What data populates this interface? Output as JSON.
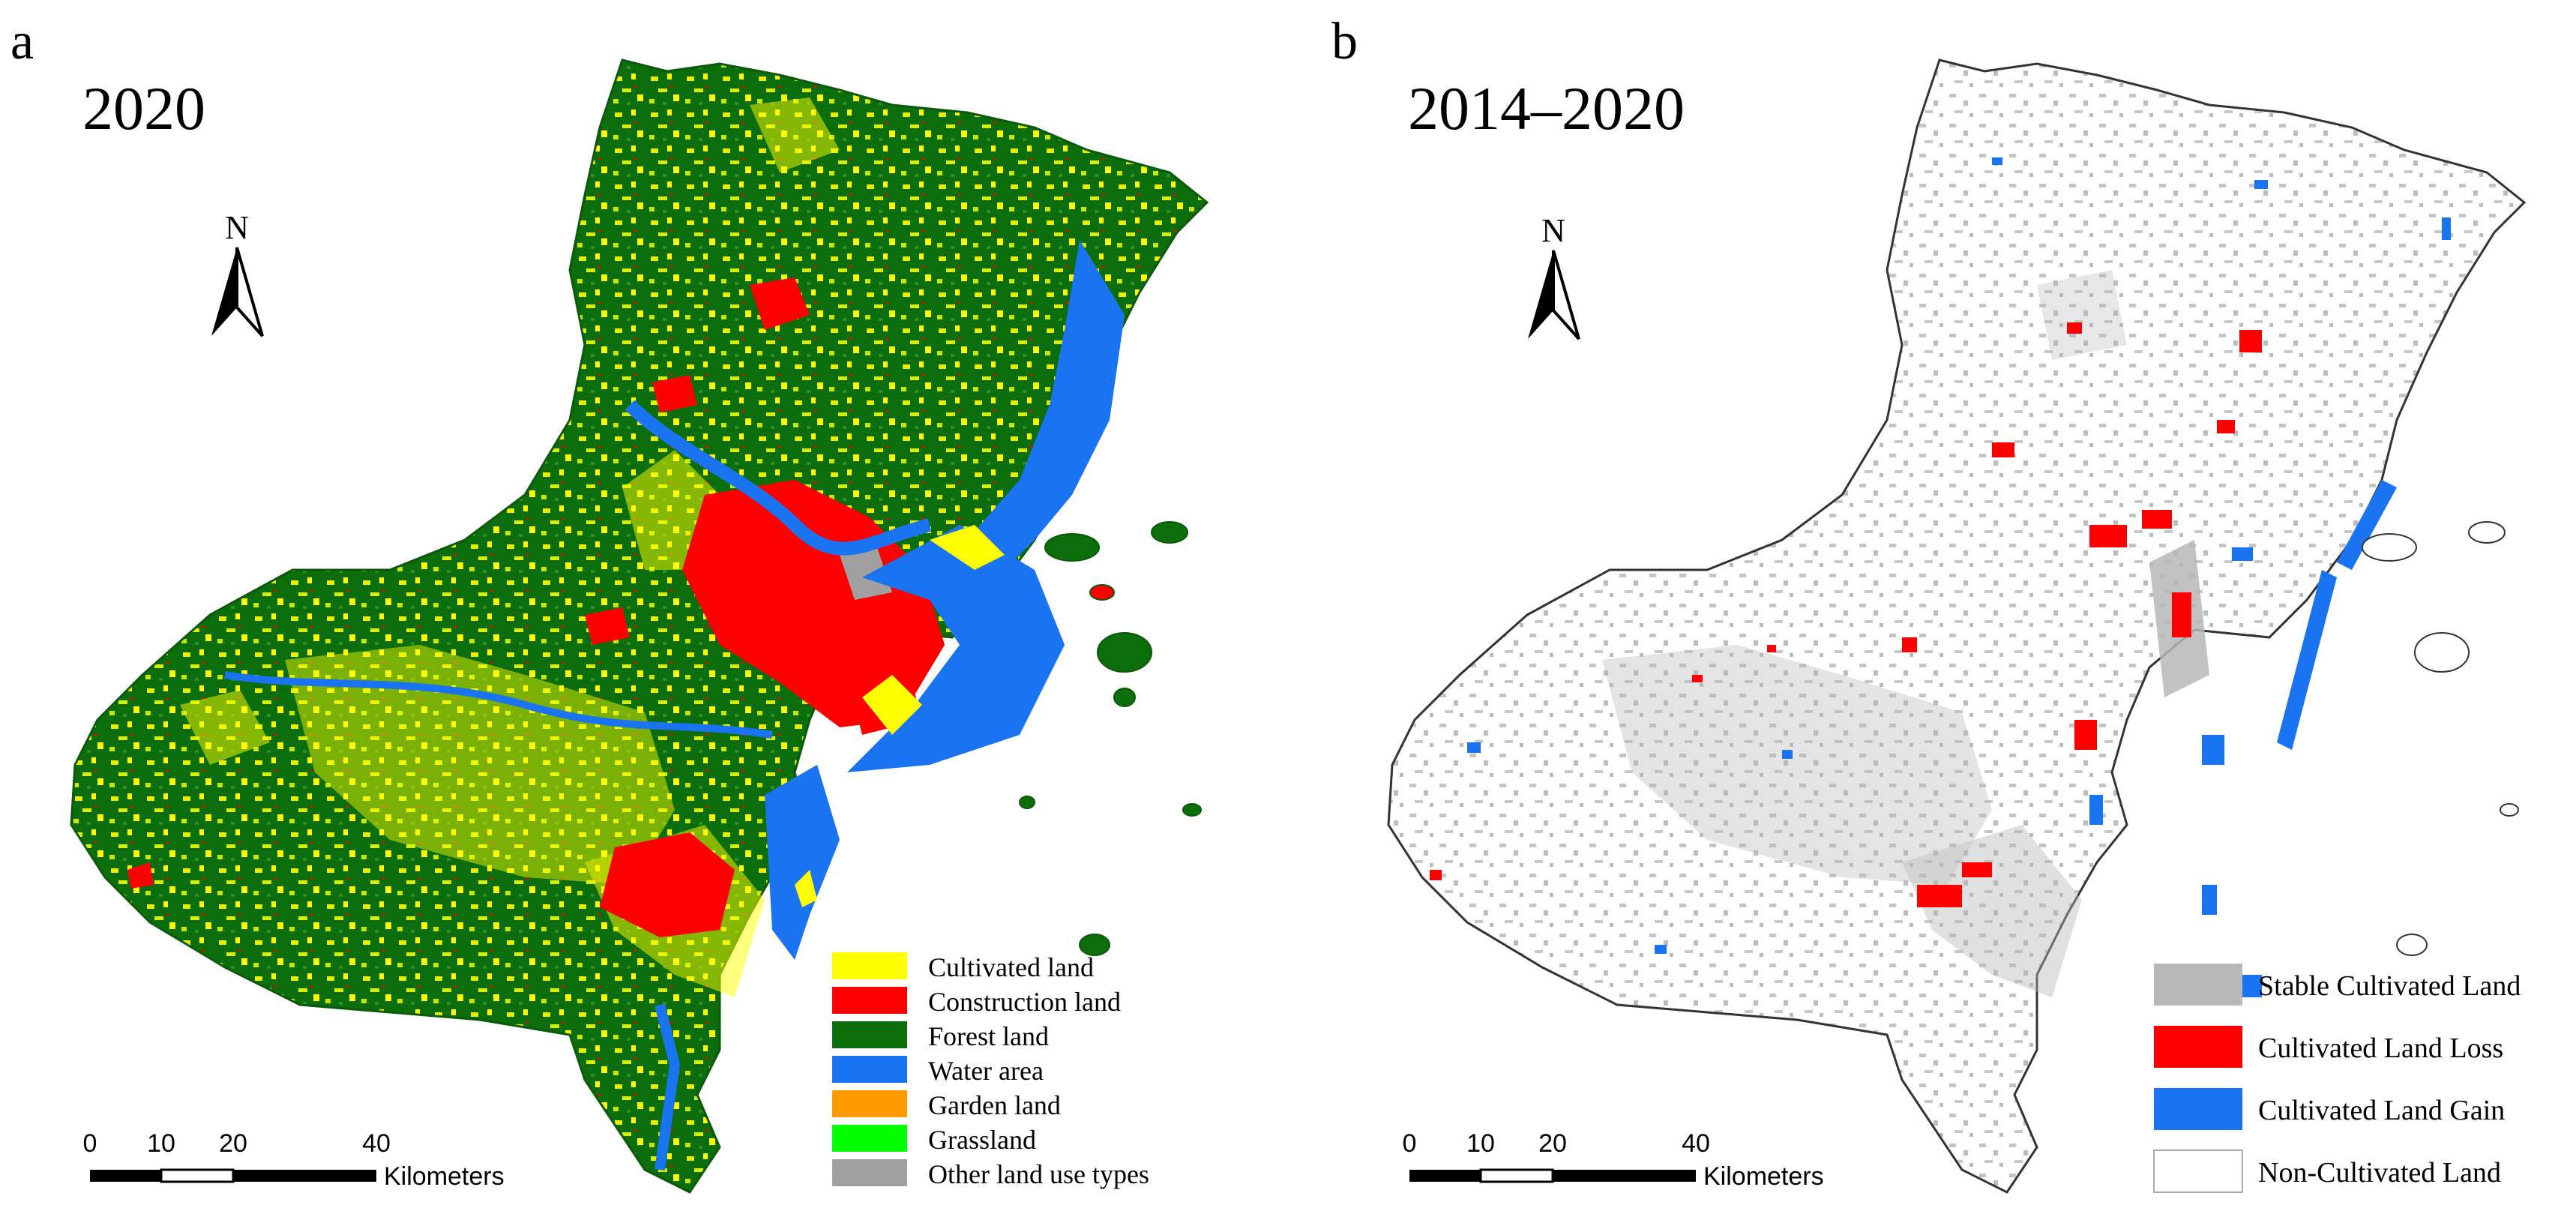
{
  "panels": [
    {
      "letter": "a",
      "year": "2020",
      "north": "N",
      "scale": {
        "ticks": [
          "0",
          "10",
          "20",
          "40"
        ],
        "unit": "Kilometers"
      },
      "legend": [
        {
          "label": "Cultivated land",
          "color": "#ffff00"
        },
        {
          "label": "Construction land",
          "color": "#ff0000"
        },
        {
          "label": "Forest land",
          "color": "#0b6e0b"
        },
        {
          "label": "Water area",
          "color": "#1a74f2"
        },
        {
          "label": "Garden land",
          "color": "#ff9a00"
        },
        {
          "label": "Grassland",
          "color": "#00ff00"
        },
        {
          "label": "Other land use types",
          "color": "#a0a0a0"
        }
      ]
    },
    {
      "letter": "b",
      "year": "2014–2020",
      "north": "N",
      "scale": {
        "ticks": [
          "0",
          "10",
          "20",
          "40"
        ],
        "unit": "Kilometers"
      },
      "legend": [
        {
          "label": "Stable Cultivated Land",
          "color": "#b8b8b8"
        },
        {
          "label": "Cultivated Land Loss",
          "color": "#ff0000"
        },
        {
          "label": "Cultivated Land Gain",
          "color": "#1a74f2"
        },
        {
          "label": "Non-Cultivated Land",
          "color": "#ffffff"
        }
      ]
    }
  ]
}
